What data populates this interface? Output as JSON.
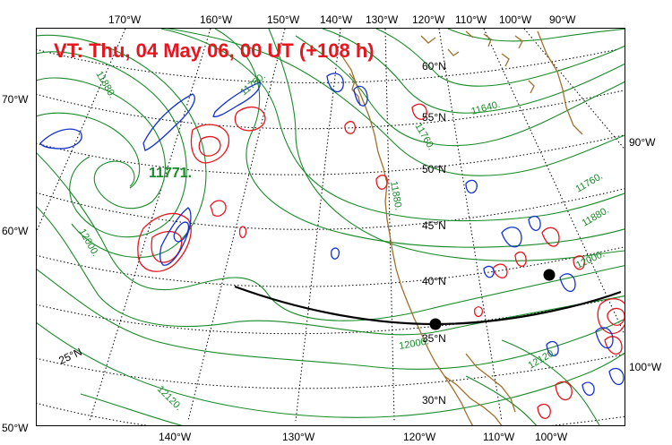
{
  "title": "VT:  Thu, 04 May 06, 00 UT (+108 h)",
  "colors": {
    "title": "#e8141e",
    "height_contours": "#1a8a2a",
    "coast": "#a0702a",
    "positive": "#e8141e",
    "negative": "#1432d2",
    "track": "#000000"
  },
  "top_lon_labels": [
    "170°W",
    "160°W",
    "150°W",
    "140°W",
    "130°W",
    "120°W",
    "110°W",
    "100°W",
    "90°W"
  ],
  "bottom_lon_labels": [
    "140°W",
    "130°W",
    "120°W",
    "110°W",
    "100°W"
  ],
  "left_labels": [
    "70°W",
    "60°W",
    "50°W"
  ],
  "right_labels": [
    "90°W",
    "100°W"
  ],
  "inner_lat_labels": [
    "60°N",
    "55°N",
    "50°N",
    "45°N",
    "40°N",
    "35°N",
    "30°N",
    "25°N"
  ],
  "contour_labels": [
    "11880.",
    "11760.",
    "11640.",
    "12000.",
    "11760.",
    "11880.",
    "11760.",
    "11880.",
    "12000.",
    "12000.",
    "12120.",
    "12120."
  ],
  "low_center_label": "11771."
}
